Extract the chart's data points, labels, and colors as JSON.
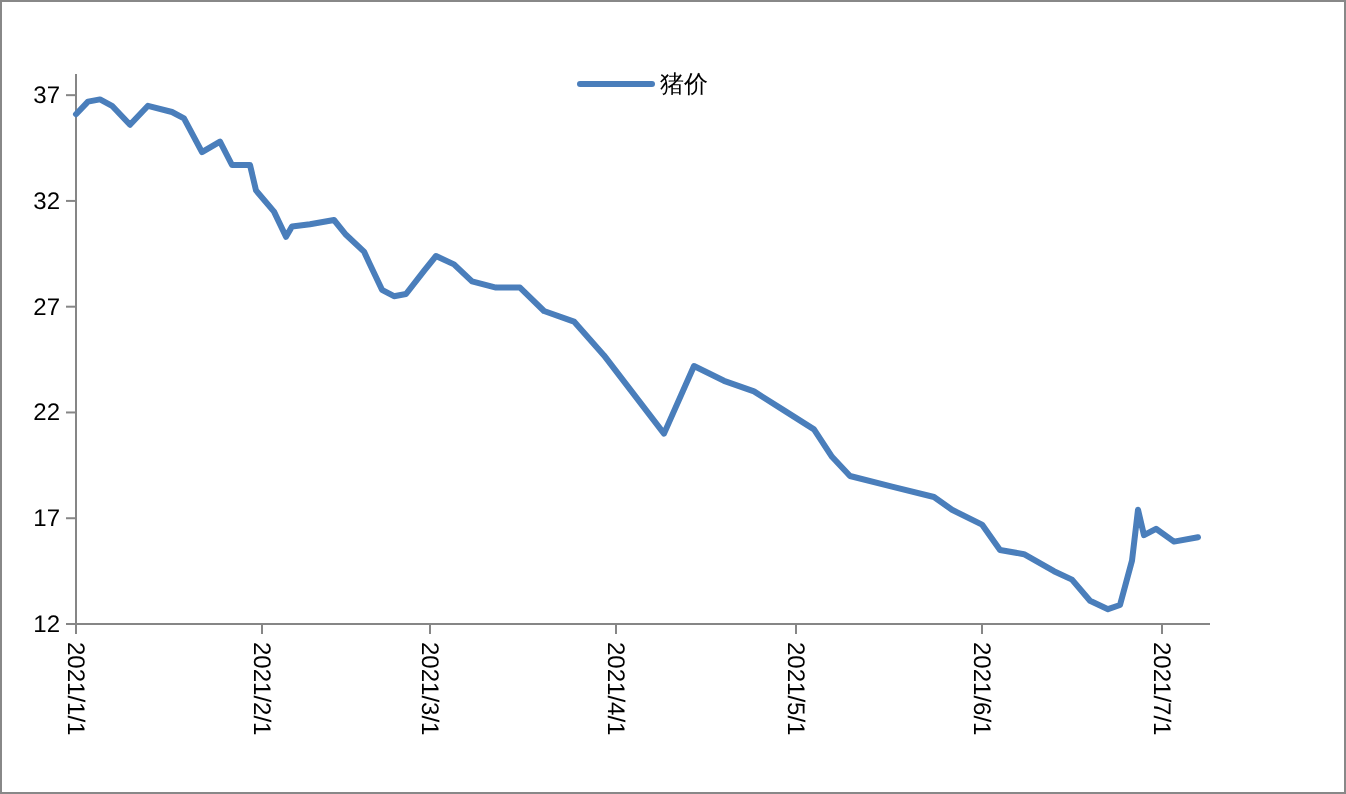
{
  "chart_data": {
    "type": "line",
    "x": [
      "2021-01-01",
      "2021-01-03",
      "2021-01-05",
      "2021-01-07",
      "2021-01-10",
      "2021-01-13",
      "2021-01-17",
      "2021-01-19",
      "2021-01-22",
      "2021-01-25",
      "2021-01-27",
      "2021-01-30",
      "2021-01-31",
      "2021-02-03",
      "2021-02-05",
      "2021-02-06",
      "2021-02-09",
      "2021-02-13",
      "2021-02-15",
      "2021-02-18",
      "2021-02-19",
      "2021-02-21",
      "2021-02-23",
      "2021-02-25",
      "2021-02-28",
      "2021-03-02",
      "2021-03-05",
      "2021-03-08",
      "2021-03-12",
      "2021-03-16",
      "2021-03-20",
      "2021-03-25",
      "2021-03-30",
      "2021-04-09",
      "2021-04-14",
      "2021-04-19",
      "2021-04-24",
      "2021-04-29",
      "2021-05-04",
      "2021-05-07",
      "2021-05-10",
      "2021-05-17",
      "2021-05-24",
      "2021-05-27",
      "2021-06-01",
      "2021-06-04",
      "2021-06-08",
      "2021-06-13",
      "2021-06-16",
      "2021-06-19",
      "2021-06-22",
      "2021-06-24",
      "2021-06-26",
      "2021-06-27",
      "2021-06-28",
      "2021-06-30",
      "2021-07-03",
      "2021-07-07"
    ],
    "series": [
      {
        "name": "猪价",
        "color": "#4a7ebb",
        "values": [
          36.1,
          36.7,
          36.8,
          36.5,
          35.6,
          36.5,
          36.2,
          35.9,
          34.3,
          34.8,
          33.7,
          33.7,
          32.5,
          31.5,
          30.3,
          30.8,
          30.9,
          31.1,
          30.4,
          29.6,
          29.0,
          27.8,
          27.5,
          27.6,
          28.7,
          29.4,
          29.0,
          28.2,
          27.9,
          27.9,
          26.8,
          26.3,
          24.7,
          21.0,
          24.2,
          23.5,
          23.0,
          22.1,
          21.2,
          19.9,
          19.0,
          18.5,
          18.0,
          17.4,
          16.7,
          15.5,
          15.3,
          14.5,
          14.1,
          13.1,
          12.7,
          12.9,
          15.0,
          17.4,
          16.2,
          16.5,
          15.9,
          16.1
        ]
      }
    ],
    "xlim": [
      "2021-01-01",
      "2021-07-09"
    ],
    "xticks": [
      {
        "value": "2021-01-01",
        "label": "2021/1/1"
      },
      {
        "value": "2021-02-01",
        "label": "2021/2/1"
      },
      {
        "value": "2021-03-01",
        "label": "2021/3/1"
      },
      {
        "value": "2021-04-01",
        "label": "2021/4/1"
      },
      {
        "value": "2021-05-01",
        "label": "2021/5/1"
      },
      {
        "value": "2021-06-01",
        "label": "2021/6/1"
      },
      {
        "value": "2021-07-01",
        "label": "2021/7/1"
      }
    ],
    "ylim": [
      12,
      38
    ],
    "yticks": [
      12,
      17,
      22,
      27,
      32,
      37
    ],
    "legend": "top right",
    "grid": false,
    "marker": "none",
    "line_style": "solid"
  }
}
